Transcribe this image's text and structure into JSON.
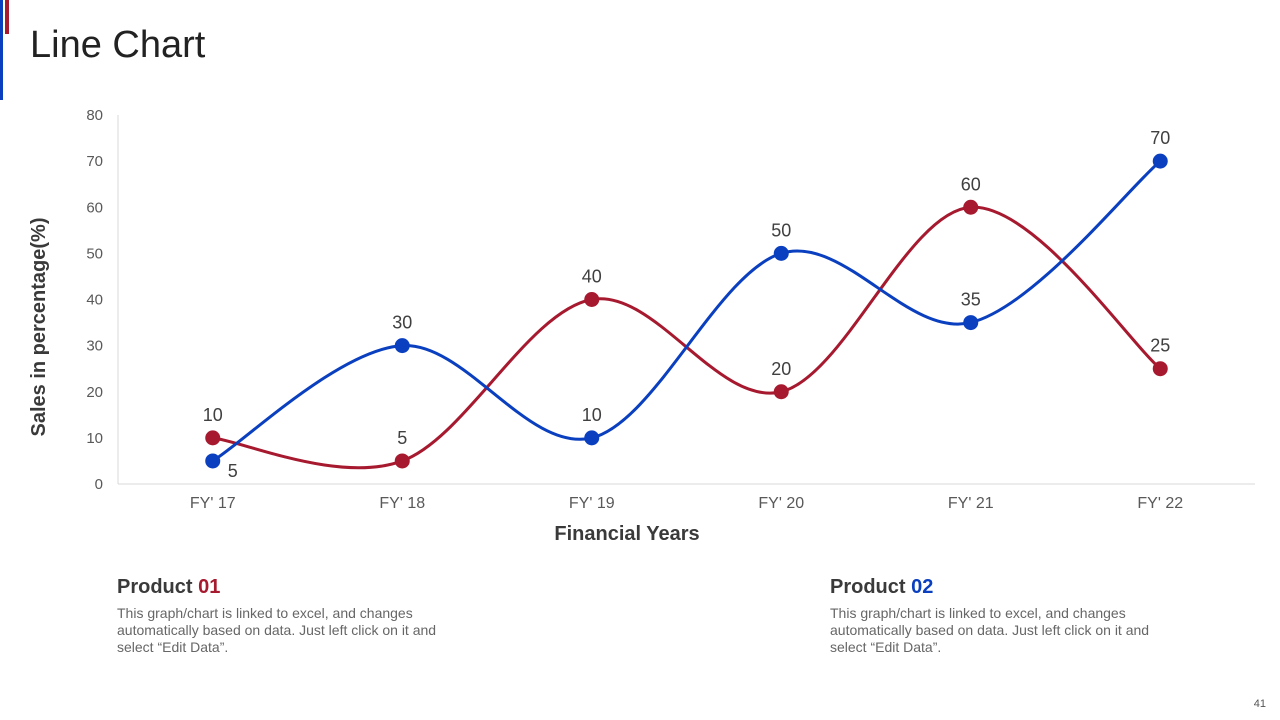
{
  "title": "Line Chart",
  "page_number": "41",
  "colors": {
    "product01": "#a6192e",
    "product02": "#0a3fbf",
    "axis_text": "#595959",
    "grid": "#d9d9d9"
  },
  "products": [
    {
      "label": "Product ",
      "number": "01",
      "description": "This graph/chart is linked to excel, and changes automatically based on data. Just left click on it and select “Edit Data”."
    },
    {
      "label": "Product ",
      "number": "02",
      "description": "This graph/chart is linked to excel, and changes automatically based on data. Just left click on it and select “Edit Data”."
    }
  ],
  "chart_data": {
    "type": "line",
    "title": "",
    "xlabel": "Financial Years",
    "ylabel": "Sales in percentage(%)",
    "categories": [
      "FY' 17",
      "FY' 18",
      "FY' 19",
      "FY' 20",
      "FY' 21",
      "FY' 22"
    ],
    "ylim": [
      0,
      80
    ],
    "yticks": [
      0,
      10,
      20,
      30,
      40,
      50,
      60,
      70,
      80
    ],
    "smooth": true,
    "series": [
      {
        "name": "Product 01",
        "color": "#a6192e",
        "values": [
          10,
          5,
          40,
          20,
          60,
          25
        ],
        "label_side": [
          "above",
          "above",
          "above",
          "above",
          "above",
          "above"
        ]
      },
      {
        "name": "Product 02",
        "color": "#0a3fbf",
        "values": [
          5,
          30,
          10,
          50,
          35,
          70
        ],
        "label_side": [
          "below-right",
          "above",
          "above",
          "above",
          "above",
          "above"
        ]
      }
    ]
  }
}
